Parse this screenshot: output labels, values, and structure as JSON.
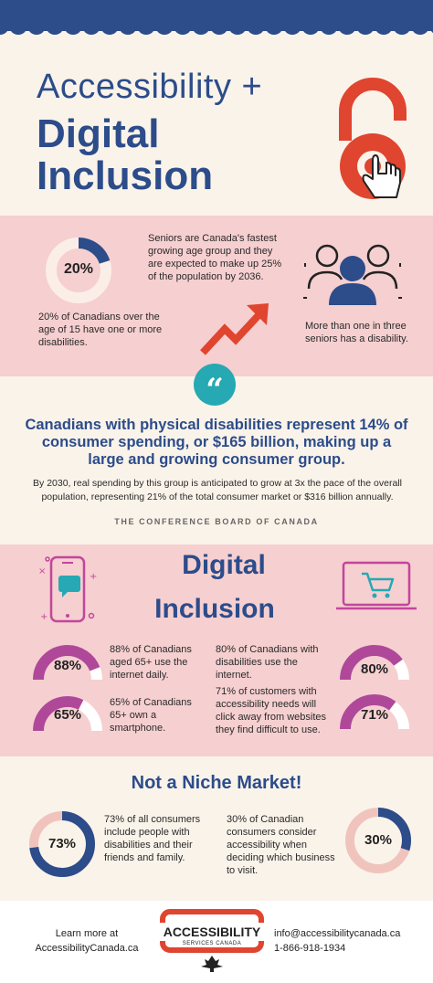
{
  "header": {
    "title_line1": "Accessibility +",
    "title_line2": "Digital",
    "title_line3": "Inclusion"
  },
  "stats_top": {
    "disability_percent_label": "20%",
    "disability_fraction": 0.2,
    "disability_text": "20% of Canadians over the age of 15 have one or more disabilities.",
    "seniors_text": "Seniors are Canada's fastest growing age group and they are expected to make up 25% of the population by 2036.",
    "seniors_disability_text": "More than one in three seniors has a disability."
  },
  "quote": {
    "icon": "quotation-mark-icon",
    "mark": "“",
    "headline": "Canadians with physical disabilities represent 14% of consumer spending, or $165 billion, making up a large and growing consumer group.",
    "body": "By 2030, real spending by this group is anticipated to grow at 3x the pace of the overall population, representing 21% of the total consumer market or $316 billion annually.",
    "source": "THE CONFERENCE BOARD OF CANADA"
  },
  "digital_inclusion": {
    "title_line1": "Digital",
    "title_line2": "Inclusion",
    "stats": [
      {
        "label": "88%",
        "fraction": 0.88,
        "text": "88% of Canadians aged 65+ use the internet daily."
      },
      {
        "label": "65%",
        "fraction": 0.65,
        "text": "65% of Canadians 65+ own  a smartphone."
      },
      {
        "label": "80%",
        "fraction": 0.8,
        "text": "80% of Canadians with disabilities use the internet."
      },
      {
        "label": "71%",
        "fraction": 0.71,
        "text": "71% of customers with accessibility needs will click away from websites they find difficult to use."
      }
    ]
  },
  "niche": {
    "title": "Not a Niche Market!",
    "stats": [
      {
        "label": "73%",
        "fraction": 0.73,
        "text": "73% of all consumers include people with disabilities and their friends and family."
      },
      {
        "label": "30%",
        "fraction": 0.3,
        "text": "30% of Canadian consumers consider accessibility when deciding which business to visit."
      }
    ]
  },
  "footer": {
    "learn_more": "Learn more at",
    "site": "AccessibilityCanada.ca",
    "logo_word": "ACCESSIBILITY",
    "logo_sub": "SERVICES CANADA",
    "email": "info@accessibilitycanada.ca",
    "phone": "1-866-918-1934"
  },
  "colors": {
    "navy": "#2c4c8a",
    "pink_band": "#f6cfd0",
    "cream": "#faf3ea",
    "red": "#e0452f",
    "teal": "#26a9b3",
    "magenta": "#b0489a",
    "donut_bg": "#f3d9d0"
  }
}
